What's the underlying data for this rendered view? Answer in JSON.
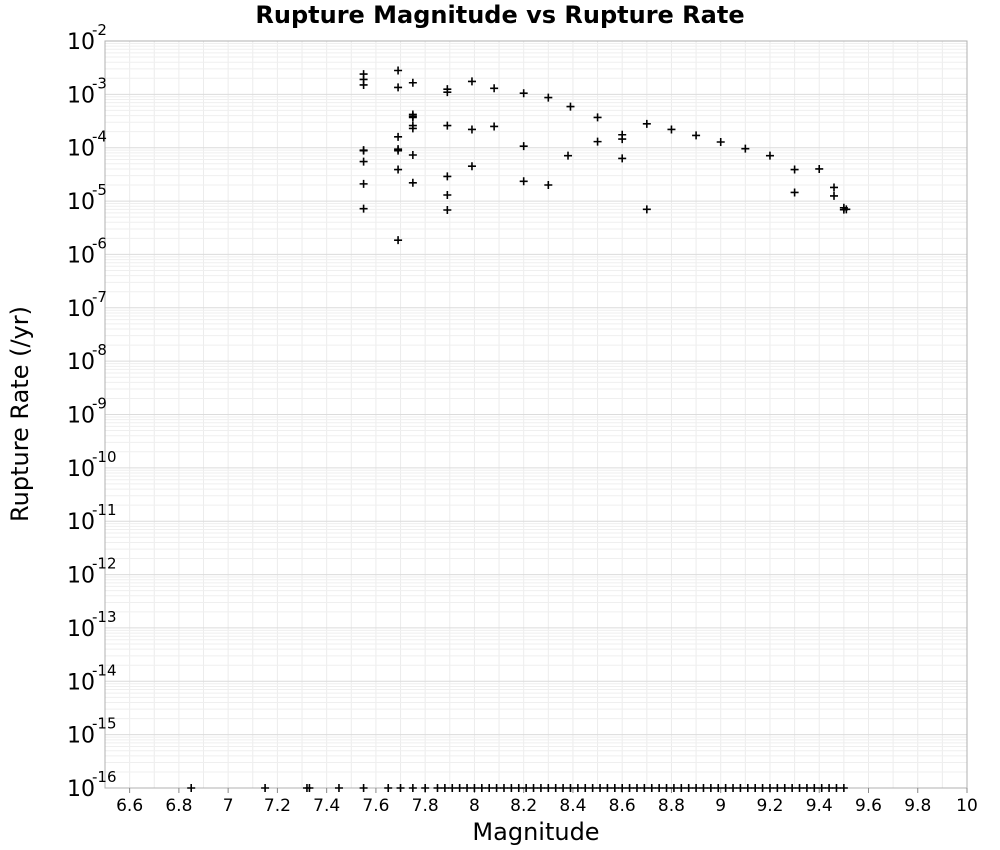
{
  "chart_data": {
    "type": "scatter",
    "title": "Rupture Magnitude vs Rupture Rate",
    "xlabel": "Magnitude",
    "ylabel": "Rupture Rate (/yr)",
    "xlim": [
      6.5,
      10.0
    ],
    "ylim": [
      1e-16,
      0.01
    ],
    "yscale": "log",
    "grid": true,
    "marker": "plus",
    "color": "#000000",
    "x_ticks": [
      "6.6",
      "6.8",
      "7",
      "7.2",
      "7.4",
      "7.6",
      "7.8",
      "8",
      "8.2",
      "8.4",
      "8.6",
      "8.8",
      "9",
      "9.2",
      "9.4",
      "9.6",
      "9.8",
      "10"
    ],
    "y_ticks": [
      {
        "base": "10",
        "exp": "-2"
      },
      {
        "base": "10",
        "exp": "-3"
      },
      {
        "base": "10",
        "exp": "-4"
      },
      {
        "base": "10",
        "exp": "-5"
      },
      {
        "base": "10",
        "exp": "-6"
      },
      {
        "base": "10",
        "exp": "-7"
      },
      {
        "base": "10",
        "exp": "-8"
      },
      {
        "base": "10",
        "exp": "-9"
      },
      {
        "base": "10",
        "exp": "-10"
      },
      {
        "base": "10",
        "exp": "-11"
      },
      {
        "base": "10",
        "exp": "-12"
      },
      {
        "base": "10",
        "exp": "-13"
      },
      {
        "base": "10",
        "exp": "-14"
      },
      {
        "base": "10",
        "exp": "-15"
      },
      {
        "base": "10",
        "exp": "-16"
      }
    ],
    "points": [
      [
        7.55,
        0.0024
      ],
      [
        7.55,
        0.0019
      ],
      [
        7.55,
        0.0015
      ],
      [
        7.55,
        9e-05
      ],
      [
        7.55,
        8.8e-05
      ],
      [
        7.55,
        5.5e-05
      ],
      [
        7.55,
        2.1e-05
      ],
      [
        7.55,
        7.2e-06
      ],
      [
        7.69,
        0.0028
      ],
      [
        7.69,
        0.00135
      ],
      [
        7.69,
        0.00016
      ],
      [
        7.69,
        9.4e-05
      ],
      [
        7.69,
        8.8e-05
      ],
      [
        7.69,
        3.9e-05
      ],
      [
        7.69,
        1.85e-06
      ],
      [
        7.75,
        0.00165
      ],
      [
        7.75,
        0.00042
      ],
      [
        7.75,
        0.00039
      ],
      [
        7.75,
        0.00037
      ],
      [
        7.75,
        0.00026
      ],
      [
        7.75,
        0.00023
      ],
      [
        7.75,
        7.3e-05
      ],
      [
        7.75,
        2.2e-05
      ],
      [
        7.89,
        0.00125
      ],
      [
        7.89,
        0.0011
      ],
      [
        7.89,
        0.00026
      ],
      [
        7.89,
        2.9e-05
      ],
      [
        7.89,
        1.3e-05
      ],
      [
        7.89,
        6.8e-06
      ],
      [
        7.99,
        0.00175
      ],
      [
        7.99,
        0.00022
      ],
      [
        7.99,
        4.5e-05
      ],
      [
        8.08,
        0.0013
      ],
      [
        8.08,
        0.00025
      ],
      [
        8.2,
        0.00105
      ],
      [
        8.2,
        0.000107
      ],
      [
        8.2,
        2.35e-05
      ],
      [
        8.3,
        0.00087
      ],
      [
        8.3,
        2e-05
      ],
      [
        8.39,
        0.00059
      ],
      [
        8.38,
        7.1e-05
      ],
      [
        8.5,
        0.00037
      ],
      [
        8.5,
        0.00013
      ],
      [
        8.6,
        0.000175
      ],
      [
        8.6,
        0.000145
      ],
      [
        8.6,
        6.3e-05
      ],
      [
        8.7,
        0.00028
      ],
      [
        8.7,
        7e-06
      ],
      [
        8.8,
        0.00022
      ],
      [
        8.9,
        0.00017
      ],
      [
        9.0,
        0.000128
      ],
      [
        9.1,
        9.6e-05
      ],
      [
        9.2,
        7.1e-05
      ],
      [
        9.3,
        3.9e-05
      ],
      [
        9.3,
        1.45e-05
      ],
      [
        9.4,
        4e-05
      ],
      [
        9.46,
        1.8e-05
      ],
      [
        9.46,
        1.25e-05
      ],
      [
        9.5,
        7.5e-06
      ],
      [
        9.5,
        6.9e-06
      ],
      [
        9.51,
        7e-06
      ],
      [
        6.85,
        1e-16
      ],
      [
        7.15,
        1e-16
      ],
      [
        7.32,
        1e-16
      ],
      [
        7.33,
        1e-16
      ],
      [
        7.45,
        1e-16
      ],
      [
        7.55,
        1e-16
      ],
      [
        7.65,
        1e-16
      ],
      [
        7.7,
        1e-16
      ],
      [
        7.75,
        1e-16
      ],
      [
        7.8,
        1e-16
      ],
      [
        7.85,
        1e-16
      ]
    ],
    "baseline_points": {
      "y": 1e-16,
      "x_start": 7.88,
      "x_end": 9.5,
      "x_step": 0.03
    }
  }
}
